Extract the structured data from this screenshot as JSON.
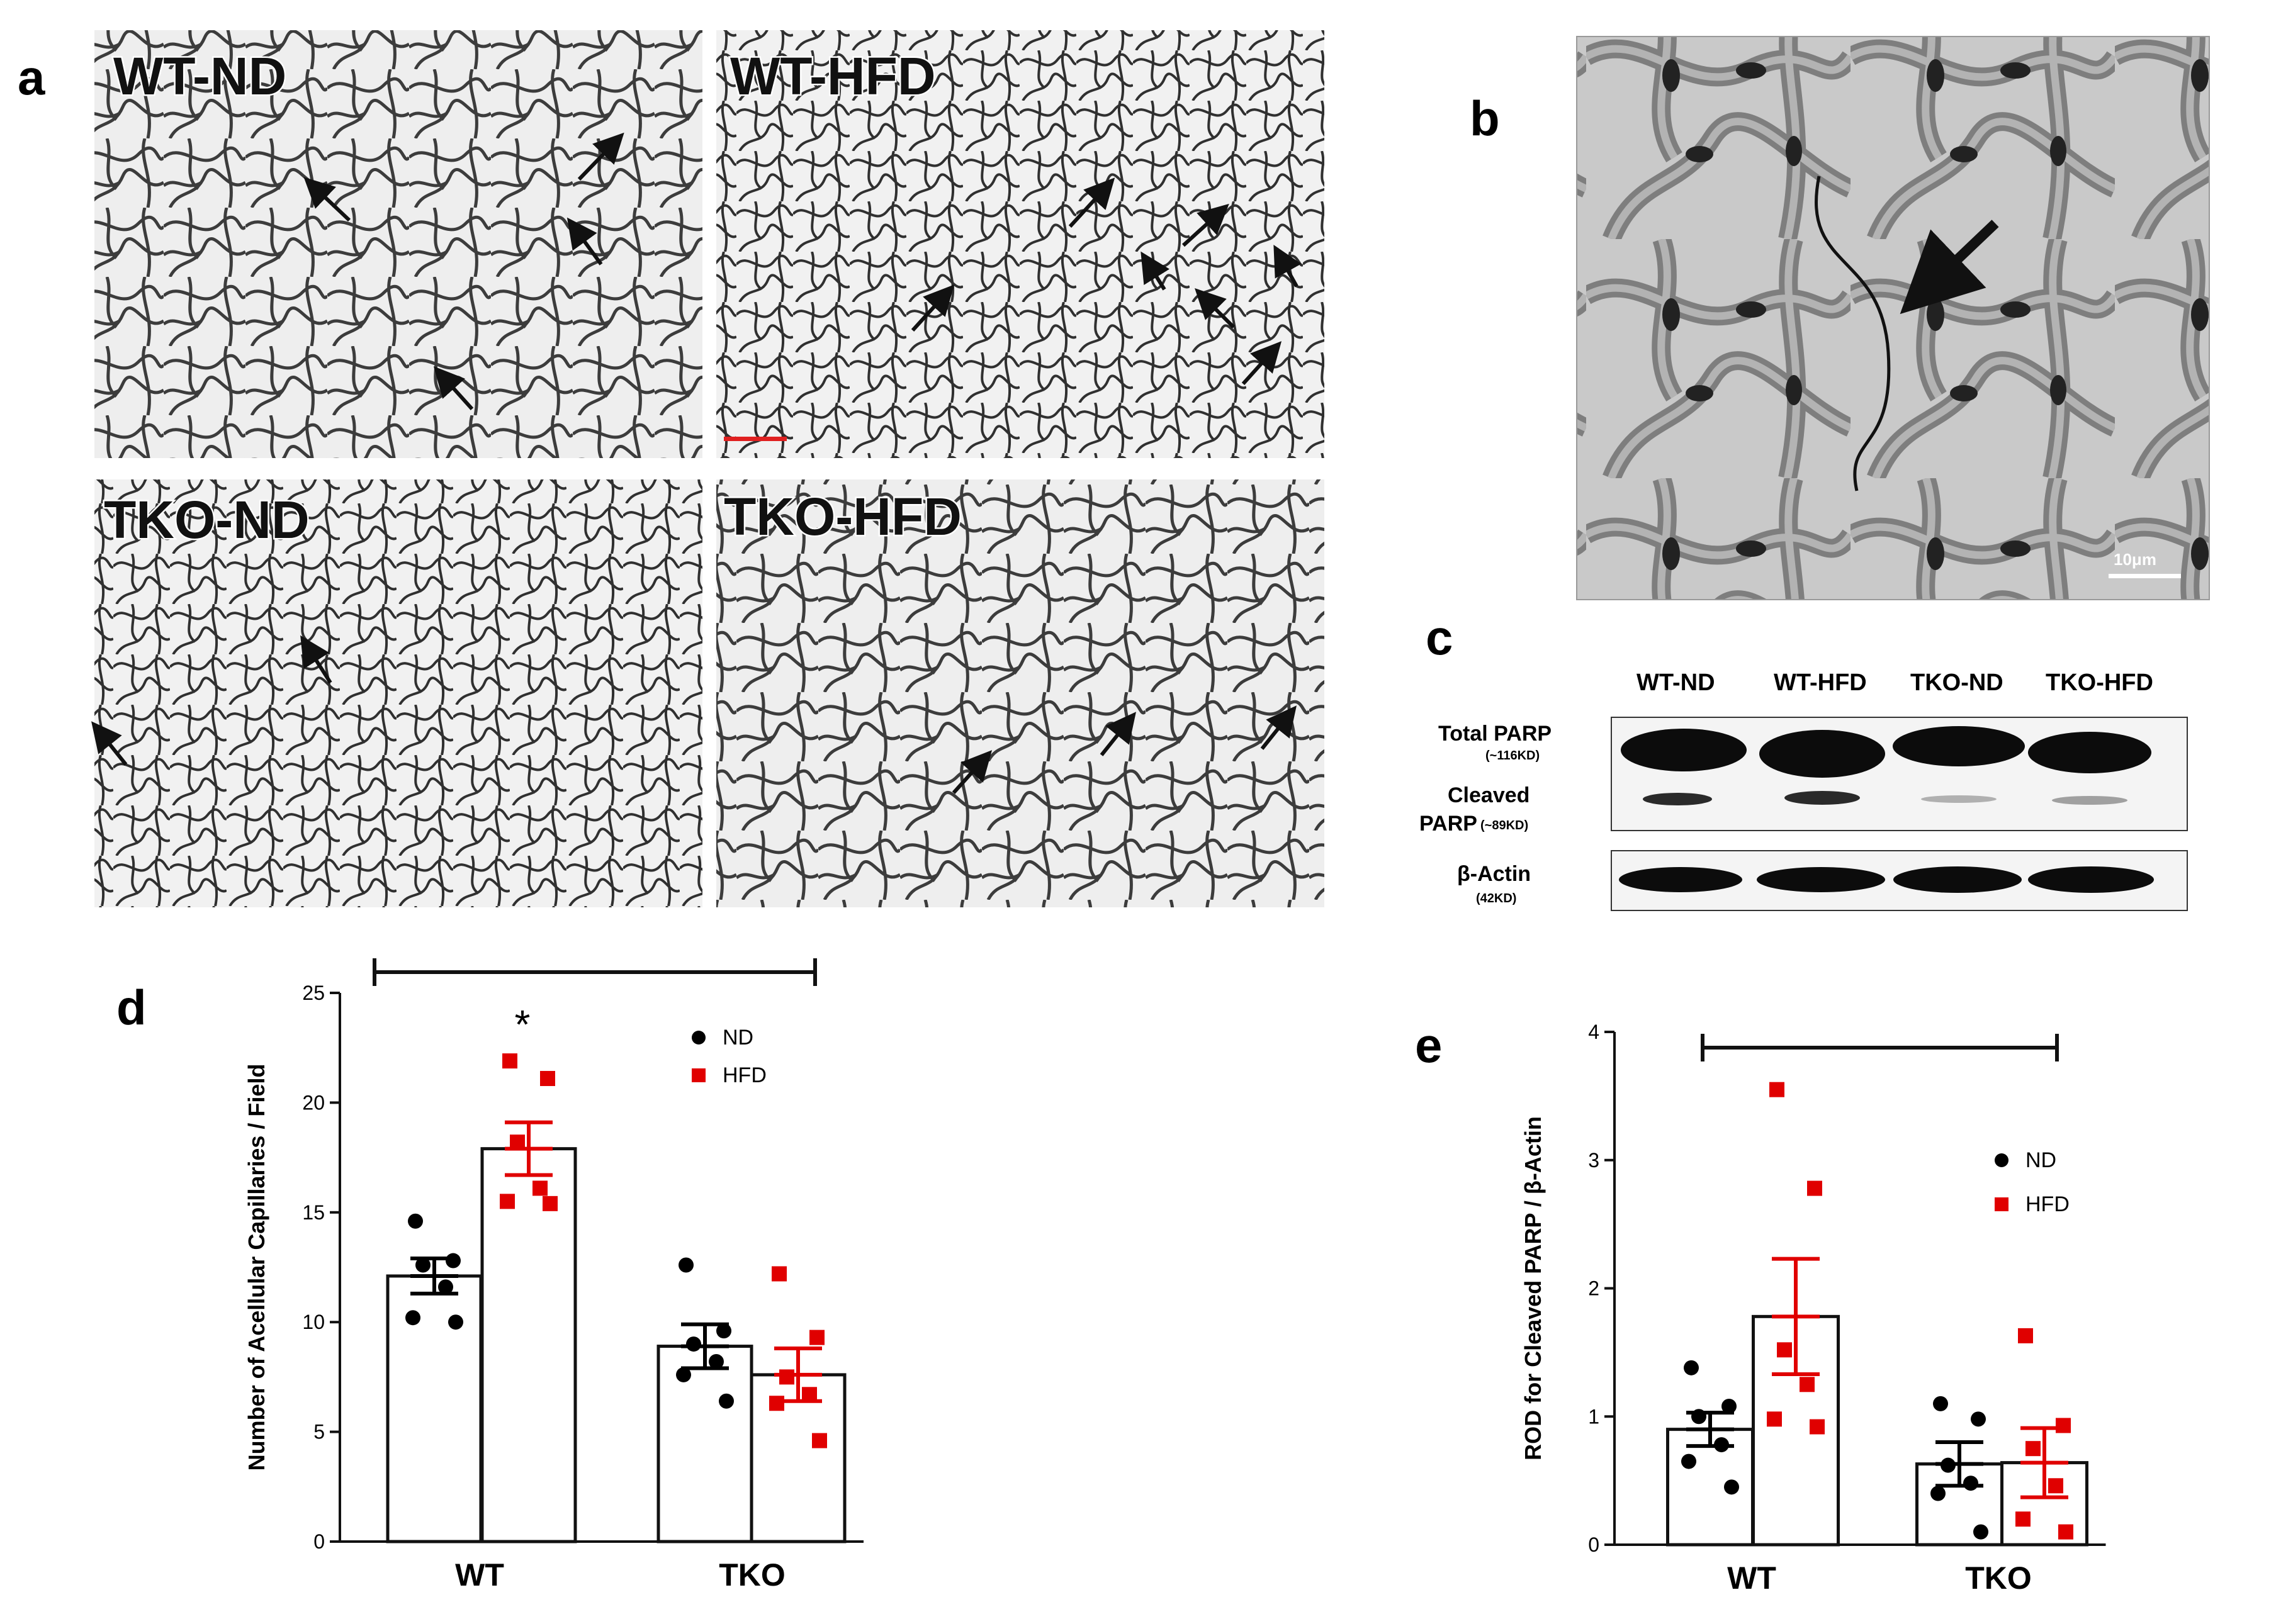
{
  "panel_labels": {
    "a": "a",
    "b": "b",
    "c": "c",
    "d": "d",
    "e": "e"
  },
  "micrographs": [
    {
      "title": "WT-ND"
    },
    {
      "title": "WT-HFD"
    },
    {
      "title": "TKO-ND"
    },
    {
      "title": "TKO-HFD"
    }
  ],
  "scale_bar": {
    "label": "10μm",
    "color": "#ffffff",
    "small_bar_color": "#e02020"
  },
  "western_blot": {
    "lanes": [
      "WT-ND",
      "WT-HFD",
      "TKO-ND",
      "TKO-HFD"
    ],
    "rows": [
      {
        "line1": "Total PARP",
        "line2": "(~116KD)"
      },
      {
        "line1": "Cleaved",
        "line2": "PARP",
        "line3": "(~89KD)"
      },
      {
        "line1": "β-Actin",
        "line2": "(42KD)"
      }
    ]
  },
  "chart_data": [
    {
      "type": "bar",
      "panel": "d",
      "categories": [
        "WT",
        "TKO"
      ],
      "ylabel": "Number of Acellular Capillaries / Field",
      "xlabel": "",
      "ylim": [
        0,
        25
      ],
      "yticks": [
        0,
        5,
        10,
        15,
        20,
        25
      ],
      "legend": "top-right",
      "annotation": "*",
      "series": [
        {
          "name": "ND",
          "color": "#000000",
          "marker": "circle",
          "values": [
            12.1,
            8.9
          ],
          "sem": [
            0.8,
            1.0
          ],
          "points": [
            [
              14.6,
              12.8,
              12.6,
              11.6,
              10.2,
              10.0
            ],
            [
              12.6,
              9.6,
              9.0,
              8.2,
              7.6,
              6.4
            ]
          ]
        },
        {
          "name": "HFD",
          "color": "#e00000",
          "marker": "square",
          "values": [
            17.9,
            7.6
          ],
          "sem": [
            1.2,
            1.2
          ],
          "points": [
            [
              21.9,
              21.1,
              18.2,
              16.1,
              15.5,
              15.4
            ],
            [
              12.2,
              9.3,
              7.5,
              6.7,
              6.3,
              4.6
            ]
          ]
        }
      ]
    },
    {
      "type": "bar",
      "panel": "e",
      "categories": [
        "WT",
        "TKO"
      ],
      "ylabel": "ROD for Cleaved PARP / β-Actin",
      "xlabel": "",
      "ylim": [
        0,
        4
      ],
      "yticks": [
        0,
        1,
        2,
        3,
        4
      ],
      "legend": "top-right",
      "series": [
        {
          "name": "ND",
          "color": "#000000",
          "marker": "circle",
          "values": [
            0.9,
            0.63
          ],
          "sem": [
            0.13,
            0.17
          ],
          "points": [
            [
              1.38,
              1.08,
              1.0,
              0.78,
              0.65,
              0.45
            ],
            [
              1.1,
              0.98,
              0.62,
              0.48,
              0.4,
              0.1
            ]
          ]
        },
        {
          "name": "HFD",
          "color": "#e00000",
          "marker": "square",
          "values": [
            1.78,
            0.64
          ],
          "sem": [
            0.45,
            0.27
          ],
          "points": [
            [
              3.55,
              2.78,
              1.52,
              1.25,
              0.98,
              0.92
            ],
            [
              1.63,
              0.93,
              0.75,
              0.46,
              0.2,
              0.1
            ]
          ]
        }
      ]
    }
  ]
}
